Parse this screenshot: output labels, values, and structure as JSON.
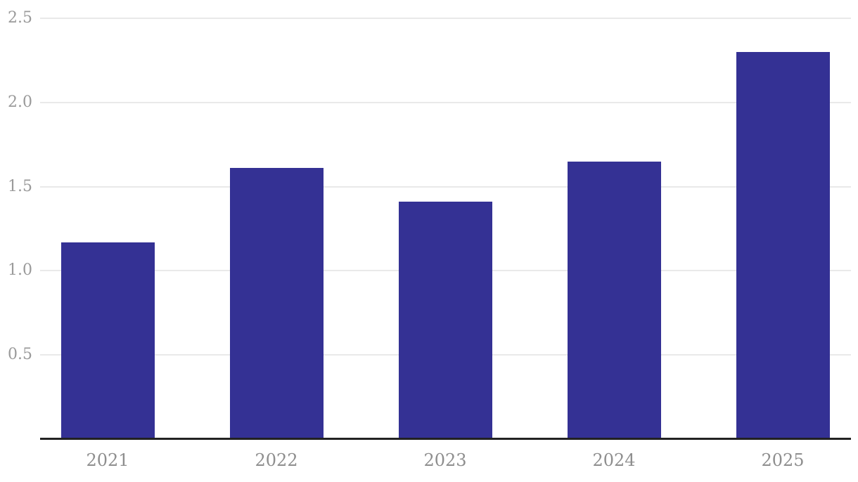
{
  "chart_data": {
    "type": "bar",
    "categories": [
      "2021",
      "2022",
      "2023",
      "2024",
      "2025"
    ],
    "values": [
      1.17,
      1.61,
      1.41,
      1.65,
      2.3
    ],
    "title": "",
    "xlabel": "",
    "ylabel": "",
    "ylim": [
      0,
      2.5
    ],
    "yticks": [
      0.5,
      1.0,
      1.5,
      2.0,
      2.5
    ],
    "ytick_labels": [
      "0.5",
      "1.0",
      "1.5",
      "2.0",
      "2.5"
    ],
    "grid": true,
    "legend": false,
    "colors": {
      "bar": "#343194",
      "gridline": "#e9e9e9",
      "axis_line": "#222222",
      "ytick_label": "#9a9a9a",
      "xtick_label": "#8e8e8e",
      "background": "#ffffff"
    }
  }
}
